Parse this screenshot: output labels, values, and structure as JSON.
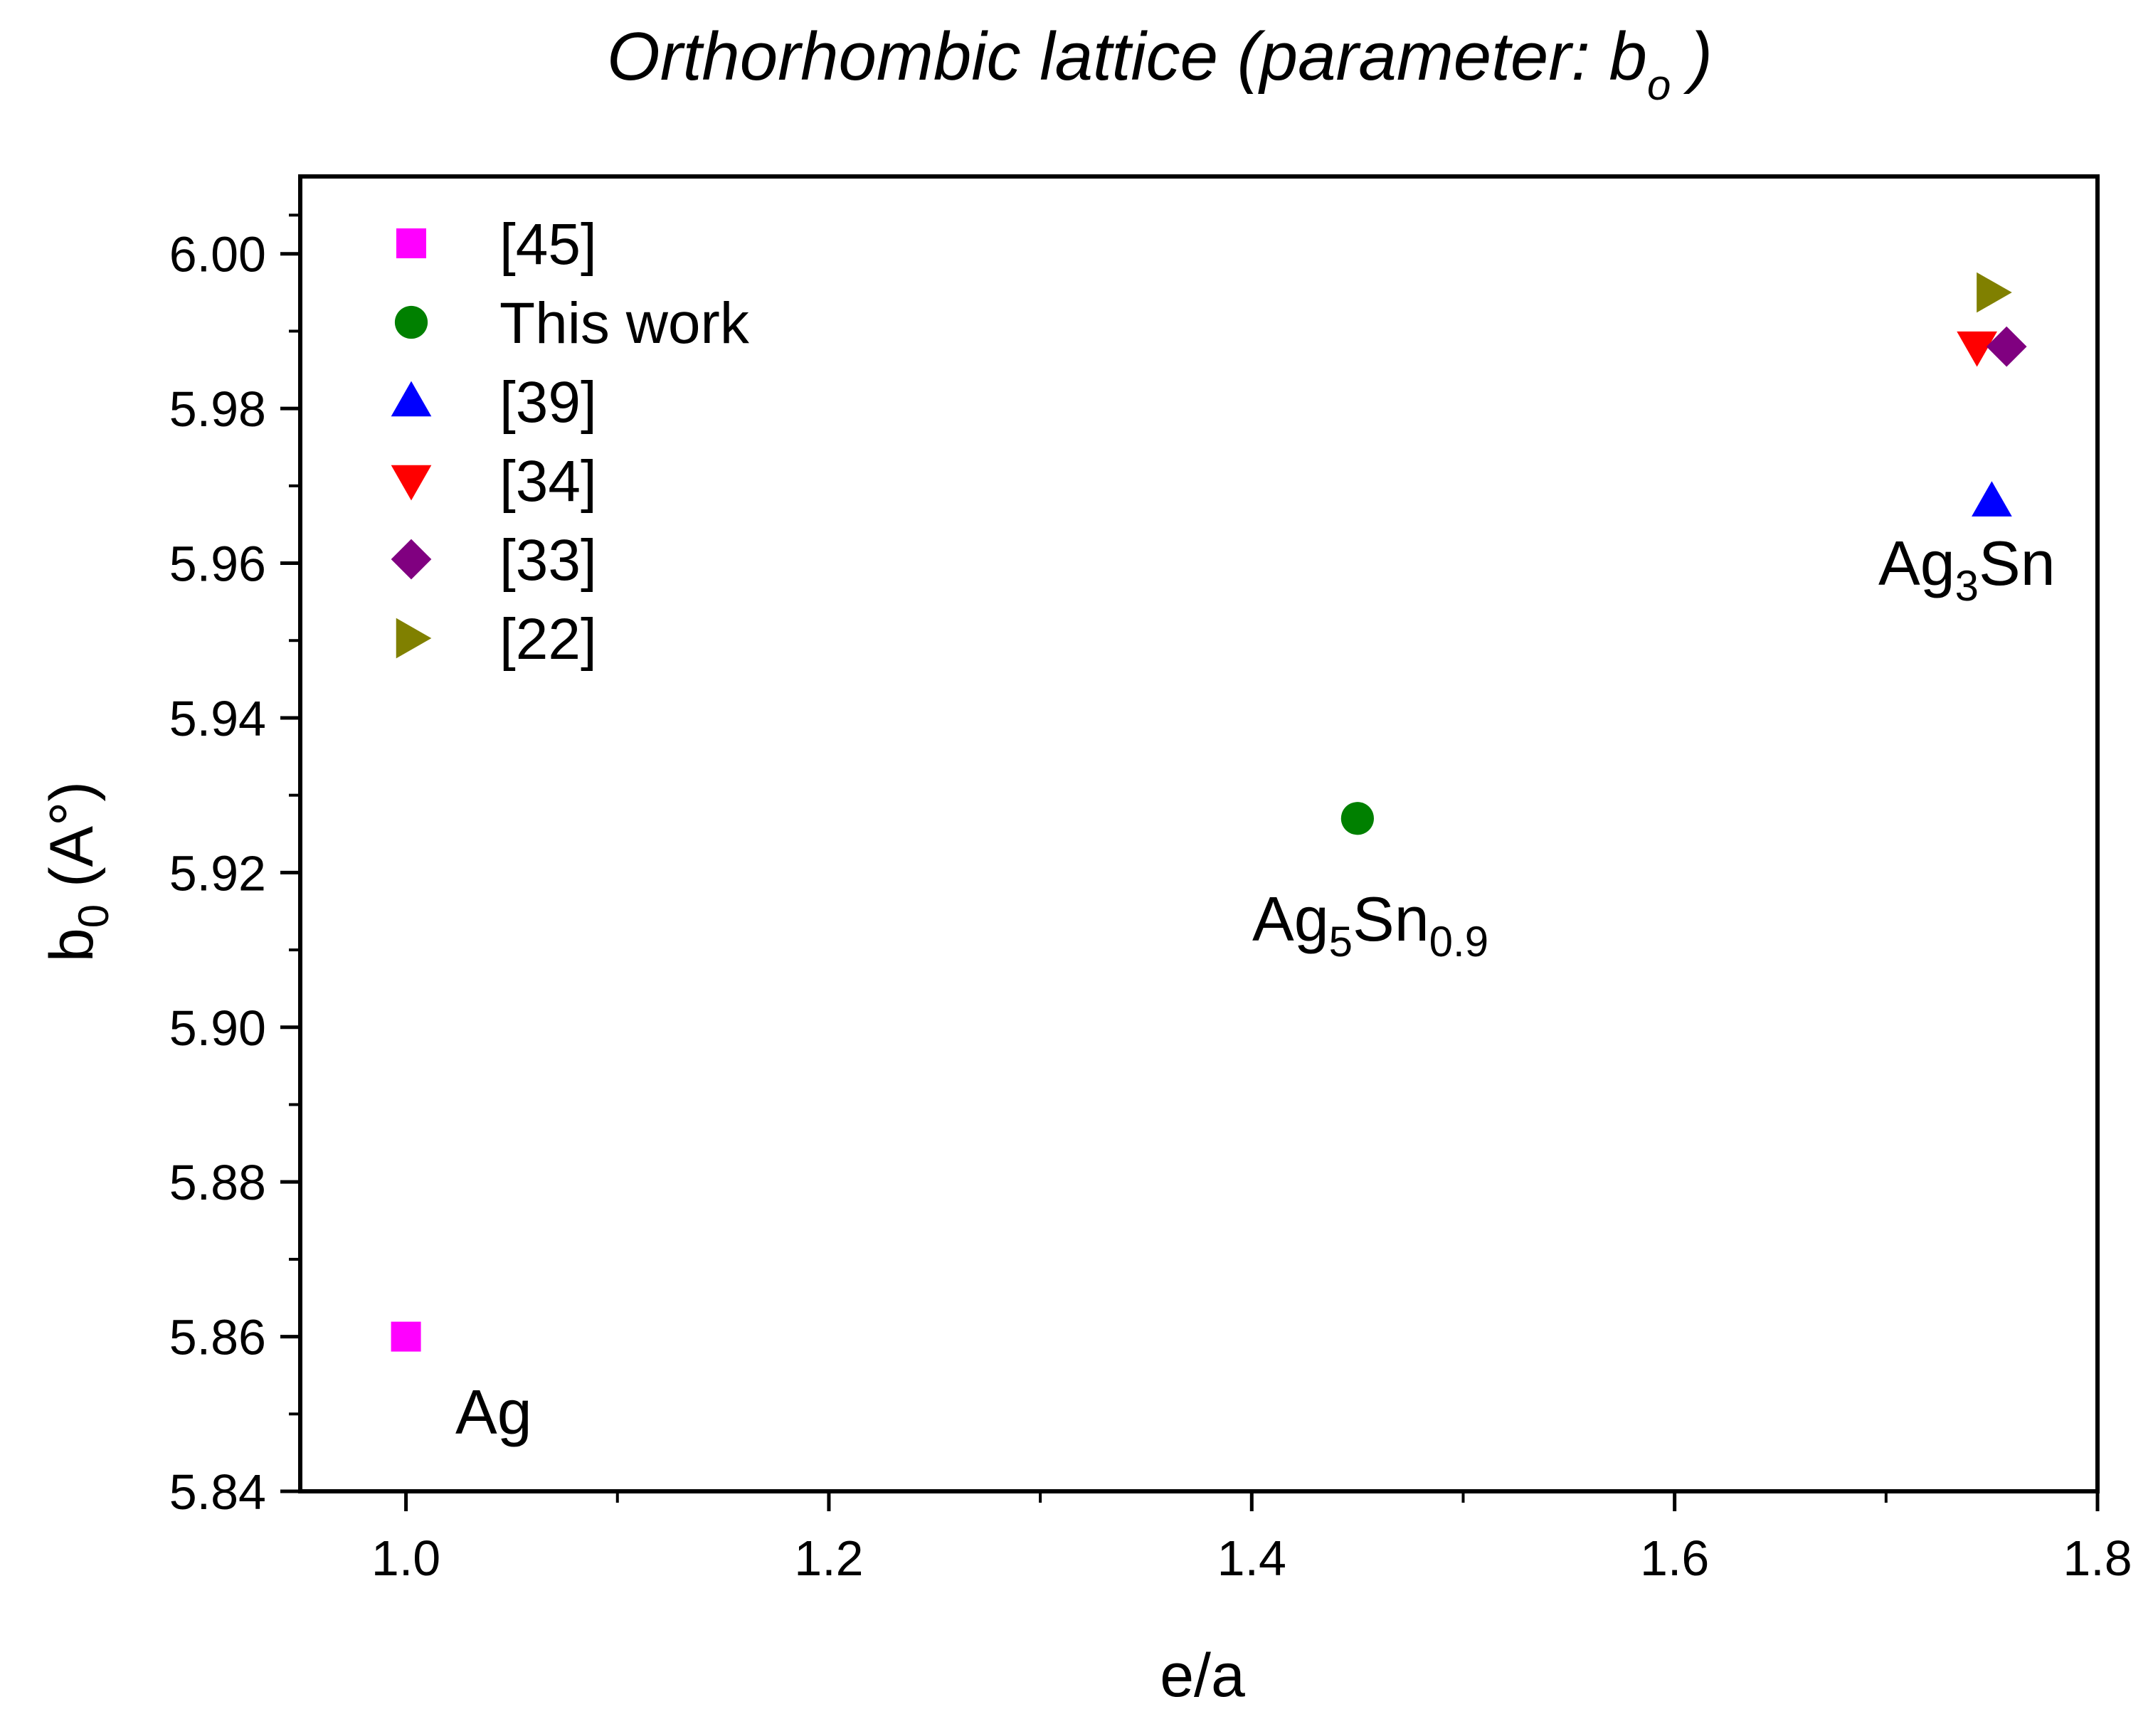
{
  "chart_data": {
    "type": "scatter",
    "title": {
      "main": "Orthorhombic lattice (parameter: b",
      "sub": "o",
      "end": " )"
    },
    "xlabel": "e/a",
    "ylabel": {
      "main": "b",
      "sub": "0",
      "end": " (A°)"
    },
    "xlim": [
      0.95,
      1.8
    ],
    "ylim": [
      5.84,
      6.01
    ],
    "xticks": [
      1.0,
      1.2,
      1.4,
      1.6,
      1.8
    ],
    "xtick_labels": [
      "1.0",
      "1.2",
      "1.4",
      "1.6",
      "1.8"
    ],
    "yticks": [
      5.84,
      5.86,
      5.88,
      5.9,
      5.92,
      5.94,
      5.96,
      5.98,
      6.0
    ],
    "ytick_labels": [
      "5.84",
      "5.86",
      "5.88",
      "5.90",
      "5.92",
      "5.94",
      "5.96",
      "5.98",
      "6.00"
    ],
    "grid": false,
    "legend_position": "top-left",
    "series": [
      {
        "name": "[45]",
        "marker": "square",
        "color": "#ff00ff",
        "x": [
          1.0
        ],
        "y": [
          5.86
        ]
      },
      {
        "name": "This work",
        "marker": "circle",
        "color": "#008000",
        "x": [
          1.45
        ],
        "y": [
          5.927
        ]
      },
      {
        "name": "[39]",
        "marker": "triangle-up",
        "color": "#0000ff",
        "x": [
          1.75
        ],
        "y": [
          5.968
        ]
      },
      {
        "name": "[34]",
        "marker": "triangle-down",
        "color": "#ff0000",
        "x": [
          1.743
        ],
        "y": [
          5.988
        ]
      },
      {
        "name": "[33]",
        "marker": "diamond",
        "color": "#800080",
        "x": [
          1.757
        ],
        "y": [
          5.988
        ]
      },
      {
        "name": "[22]",
        "marker": "triangle-right",
        "color": "#808000",
        "x": [
          1.75
        ],
        "y": [
          5.995
        ]
      }
    ],
    "annotations": [
      {
        "id": "ag",
        "base": "Ag",
        "parts": []
      },
      {
        "id": "ag5sn",
        "base": "Ag",
        "parts": [
          {
            "sub": "5"
          },
          {
            "text": "Sn"
          },
          {
            "sub": "0.9"
          }
        ]
      },
      {
        "id": "ag3sn",
        "base": "Ag",
        "parts": [
          {
            "sub": "3"
          },
          {
            "text": "Sn"
          }
        ]
      }
    ]
  }
}
